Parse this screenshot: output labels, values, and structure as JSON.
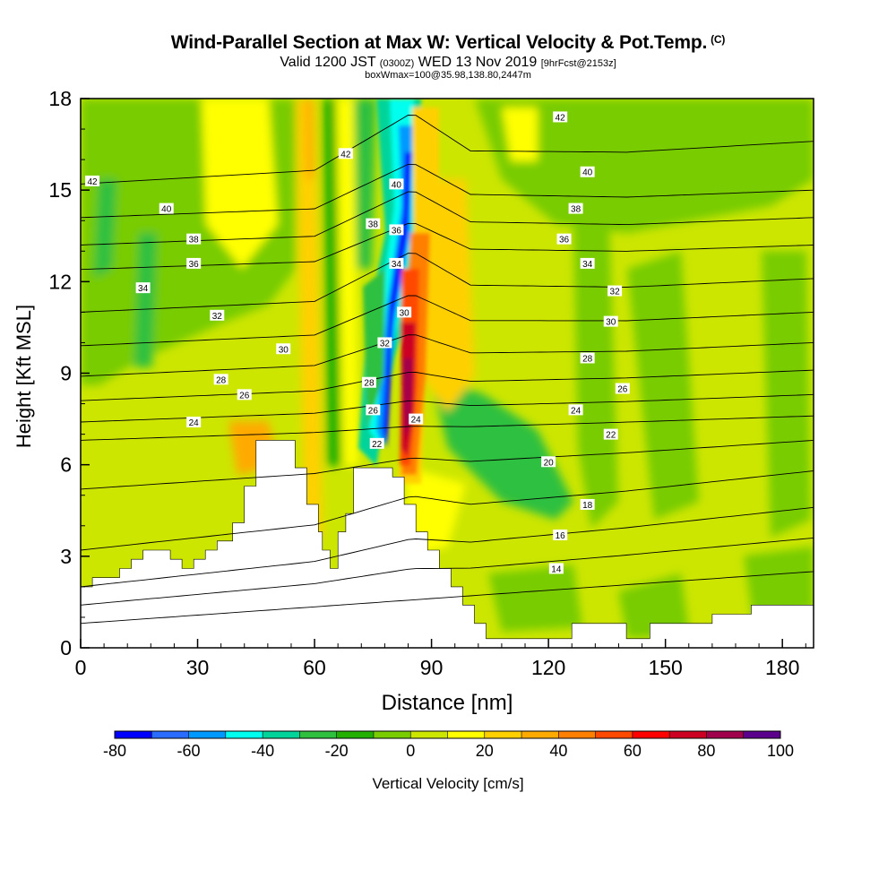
{
  "chart_data": {
    "type": "contour",
    "title": "Wind-Parallel Section at Max W: Vertical Velocity & Pot.Temp.",
    "title_badge": "(C)",
    "subtitle": {
      "pre": "Valid 1200 JST",
      "small1": "(0300Z)",
      "mid": "WED 13 Nov 2019",
      "small2": "[9hrFcst@2153z]"
    },
    "subtitle2": "boxWmax=100@35.98,138.80,2447m",
    "xlabel": "Distance [nm]",
    "ylabel": "Height [Kft MSL]",
    "xlim": [
      0,
      188
    ],
    "ylim": [
      0,
      18
    ],
    "xticks": [
      0,
      30,
      60,
      90,
      120,
      150,
      180
    ],
    "yticks": [
      0,
      3,
      6,
      9,
      12,
      15,
      18
    ],
    "colorbar": {
      "label": "Vertical Velocity [cm/s]",
      "ticks": [
        -80,
        -60,
        -40,
        -20,
        0,
        20,
        40,
        60,
        80,
        100
      ],
      "colors": [
        "#0000ff",
        "#2a6cff",
        "#0099ff",
        "#00ffee",
        "#00d49a",
        "#2fc040",
        "#24b000",
        "#78cc00",
        "#cce600",
        "#ffff00",
        "#ffd000",
        "#ffaa00",
        "#ff7f00",
        "#ff4800",
        "#ff0000",
        "#cc0022",
        "#a0004c",
        "#5a008c"
      ]
    },
    "terrain_kft": [
      [
        0,
        2.0
      ],
      [
        3,
        2.0
      ],
      [
        3,
        2.3
      ],
      [
        10,
        2.3
      ],
      [
        10,
        2.6
      ],
      [
        13,
        2.6
      ],
      [
        13,
        2.9
      ],
      [
        16,
        2.9
      ],
      [
        16,
        3.2
      ],
      [
        23,
        3.2
      ],
      [
        23,
        2.9
      ],
      [
        26,
        2.9
      ],
      [
        26,
        2.6
      ],
      [
        29,
        2.6
      ],
      [
        29,
        2.9
      ],
      [
        32,
        2.9
      ],
      [
        32,
        3.2
      ],
      [
        35,
        3.2
      ],
      [
        35,
        3.5
      ],
      [
        39,
        3.5
      ],
      [
        39,
        4.1
      ],
      [
        42,
        4.1
      ],
      [
        42,
        5.3
      ],
      [
        45,
        5.3
      ],
      [
        45,
        6.8
      ],
      [
        55,
        6.8
      ],
      [
        55,
        5.9
      ],
      [
        58,
        5.9
      ],
      [
        58,
        4.7
      ],
      [
        61,
        4.7
      ],
      [
        61,
        3.8
      ],
      [
        62,
        3.8
      ],
      [
        62,
        3.2
      ],
      [
        64,
        3.2
      ],
      [
        64,
        2.6
      ],
      [
        66,
        2.6
      ],
      [
        66,
        3.8
      ],
      [
        68,
        3.8
      ],
      [
        68,
        4.4
      ],
      [
        70,
        4.4
      ],
      [
        70,
        5.9
      ],
      [
        80,
        5.9
      ],
      [
        80,
        5.6
      ],
      [
        83,
        5.6
      ],
      [
        83,
        4.7
      ],
      [
        86,
        4.7
      ],
      [
        86,
        3.8
      ],
      [
        89,
        3.8
      ],
      [
        89,
        3.2
      ],
      [
        92,
        3.2
      ],
      [
        92,
        2.6
      ],
      [
        95,
        2.6
      ],
      [
        95,
        2.0
      ],
      [
        98,
        2.0
      ],
      [
        98,
        1.4
      ],
      [
        101,
        1.4
      ],
      [
        101,
        0.8
      ],
      [
        104,
        0.8
      ],
      [
        104,
        0.3
      ],
      [
        126,
        0.3
      ],
      [
        126,
        0.8
      ],
      [
        140,
        0.8
      ],
      [
        140,
        0.3
      ],
      [
        146,
        0.3
      ],
      [
        146,
        0.8
      ],
      [
        162,
        0.8
      ],
      [
        162,
        1.1
      ],
      [
        172,
        1.1
      ],
      [
        172,
        1.4
      ],
      [
        188,
        1.4
      ]
    ],
    "isentropes": [
      {
        "label": "14",
        "yL": 0.8,
        "yE": 0.8,
        "yR": 2.5,
        "lx": 122
      },
      {
        "label": "16",
        "yL": 1.4,
        "yE": 1.6,
        "yR": 3.6,
        "lx": 123
      },
      {
        "label": "18",
        "yL": 2.0,
        "yE": 2.4,
        "yR": 4.6,
        "lx": 130
      },
      {
        "label": "20",
        "yL": 3.2,
        "yE": 3.8,
        "yR": 5.8,
        "lx": 120
      },
      {
        "label": "22",
        "yL": 5.2,
        "yE": 5.5,
        "yR": 6.8,
        "lx": 136
      },
      {
        "label": "24",
        "yL": 6.8,
        "yE": 6.9,
        "yR": 7.6,
        "lx": 132
      },
      {
        "label": "26",
        "yL": 7.4,
        "yE": 7.7,
        "yR": 8.3,
        "lx": 137
      },
      {
        "label": "28",
        "yL": 8.1,
        "yE": 8.6,
        "yR": 9.1,
        "lx": 130
      },
      {
        "label": "30",
        "yL": 8.9,
        "yE": 9.8,
        "yR": 10.0,
        "lx": 136
      },
      {
        "label": "32",
        "yL": 9.9,
        "yE": 11.1,
        "yR": 11.0,
        "lx": 137
      },
      {
        "label": "34",
        "yL": 11.0,
        "yE": 12.5,
        "yR": 12.1,
        "lx": 130
      },
      {
        "label": "36",
        "yL": 12.4,
        "yE": 13.6,
        "yR": 13.2,
        "lx": 123
      },
      {
        "label": "38",
        "yL": 13.2,
        "yE": 14.6,
        "yR": 14.1,
        "lx": 126
      },
      {
        "label": "40",
        "yL": 14.1,
        "yE": 15.5,
        "yR": 15.0,
        "lx": 130
      },
      {
        "label": "42",
        "yL": 15.2,
        "yE": 16.9,
        "yR": 16.6,
        "lx": 124
      }
    ],
    "contour_labels": [
      {
        "text": "42",
        "x": 3,
        "y": 15.3
      },
      {
        "text": "40",
        "x": 22,
        "y": 14.4
      },
      {
        "text": "38",
        "x": 29,
        "y": 13.4
      },
      {
        "text": "36",
        "x": 29,
        "y": 12.6
      },
      {
        "text": "34",
        "x": 16,
        "y": 11.8
      },
      {
        "text": "32",
        "x": 35,
        "y": 10.9
      },
      {
        "text": "30",
        "x": 52,
        "y": 9.8
      },
      {
        "text": "28",
        "x": 36,
        "y": 8.8
      },
      {
        "text": "26",
        "x": 42,
        "y": 8.3
      },
      {
        "text": "24",
        "x": 29,
        "y": 7.4
      },
      {
        "text": "42",
        "x": 68,
        "y": 16.2
      },
      {
        "text": "40",
        "x": 81,
        "y": 15.2
      },
      {
        "text": "38",
        "x": 75,
        "y": 13.9
      },
      {
        "text": "36",
        "x": 81,
        "y": 13.7
      },
      {
        "text": "34",
        "x": 81,
        "y": 12.6
      },
      {
        "text": "30",
        "x": 83,
        "y": 11.0
      },
      {
        "text": "32",
        "x": 78,
        "y": 10.0
      },
      {
        "text": "28",
        "x": 74,
        "y": 8.7
      },
      {
        "text": "26",
        "x": 75,
        "y": 7.8
      },
      {
        "text": "24",
        "x": 86,
        "y": 7.5
      },
      {
        "text": "22",
        "x": 76,
        "y": 6.7
      },
      {
        "text": "42",
        "x": 123,
        "y": 17.4
      },
      {
        "text": "40",
        "x": 130,
        "y": 15.6
      },
      {
        "text": "38",
        "x": 127,
        "y": 14.4
      },
      {
        "text": "36",
        "x": 124,
        "y": 13.4
      },
      {
        "text": "34",
        "x": 130,
        "y": 12.6
      },
      {
        "text": "32",
        "x": 137,
        "y": 11.7
      },
      {
        "text": "30",
        "x": 136,
        "y": 10.7
      },
      {
        "text": "28",
        "x": 130,
        "y": 9.5
      },
      {
        "text": "26",
        "x": 139,
        "y": 8.5
      },
      {
        "text": "24",
        "x": 127,
        "y": 7.8
      },
      {
        "text": "22",
        "x": 136,
        "y": 7.0
      },
      {
        "text": "20",
        "x": 120,
        "y": 6.1
      },
      {
        "text": "18",
        "x": 130,
        "y": 4.7
      },
      {
        "text": "16",
        "x": 123,
        "y": 3.7
      },
      {
        "text": "14",
        "x": 122,
        "y": 2.6
      }
    ]
  }
}
